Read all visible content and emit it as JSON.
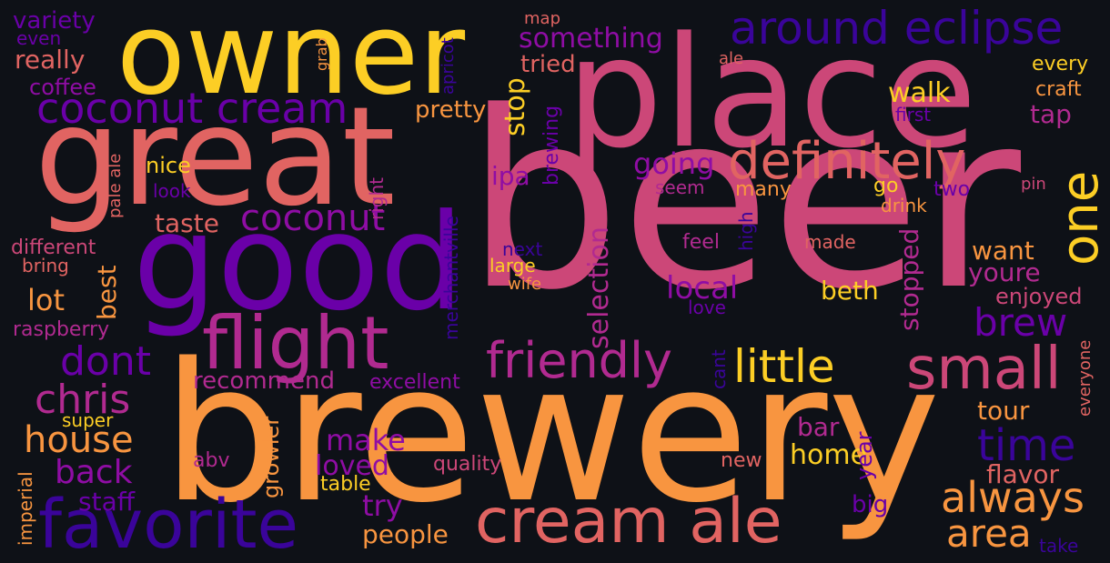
{
  "words": [
    {
      "id": "beer",
      "text": "beer",
      "color": "#cc4778"
    },
    {
      "id": "brewery",
      "text": "brewery",
      "color": "#f89540"
    },
    {
      "id": "place",
      "text": "place",
      "color": "#cc4778"
    },
    {
      "id": "great",
      "text": "great",
      "color": "#e16462"
    },
    {
      "id": "owner",
      "text": "owner",
      "color": "#fcce25"
    },
    {
      "id": "good",
      "text": "good",
      "color": "#6a00a8"
    },
    {
      "id": "favorite",
      "text": "favorite",
      "color": "#3a049a"
    },
    {
      "id": "cream-ale",
      "text": "cream ale",
      "color": "#e16462"
    },
    {
      "id": "flight",
      "text": "flight",
      "color": "#b12a90"
    },
    {
      "id": "small",
      "text": "small",
      "color": "#cc4778"
    },
    {
      "id": "definitely",
      "text": "definitely",
      "color": "#e16462"
    },
    {
      "id": "coconut-cream",
      "text": "coconut cream",
      "color": "#6a00a8"
    },
    {
      "id": "around-eclipse",
      "text": "around eclipse",
      "color": "#3a049a"
    },
    {
      "id": "friendly",
      "text": "friendly",
      "color": "#b12a90"
    },
    {
      "id": "little",
      "text": "little",
      "color": "#fcce25"
    },
    {
      "id": "always",
      "text": "always",
      "color": "#f89540"
    },
    {
      "id": "time",
      "text": "time",
      "color": "#3a049a"
    },
    {
      "id": "one",
      "text": "one",
      "color": "#fcce25"
    },
    {
      "id": "coconut",
      "text": "coconut",
      "color": "#8f0da4"
    },
    {
      "id": "house",
      "text": "house",
      "color": "#f89540"
    },
    {
      "id": "chris",
      "text": "chris",
      "color": "#b12a90"
    },
    {
      "id": "dont",
      "text": "dont",
      "color": "#6a00a8"
    },
    {
      "id": "brew",
      "text": "brew",
      "color": "#6a00a8"
    },
    {
      "id": "area",
      "text": "area",
      "color": "#f89540"
    },
    {
      "id": "back",
      "text": "back",
      "color": "#8f0da4"
    },
    {
      "id": "something",
      "text": "something",
      "color": "#8f0da4"
    },
    {
      "id": "going",
      "text": "going",
      "color": "#8f0da4"
    },
    {
      "id": "local",
      "text": "local",
      "color": "#8f0da4"
    },
    {
      "id": "really",
      "text": "really",
      "color": "#e16462"
    },
    {
      "id": "coffee",
      "text": "coffee",
      "color": "#8f0da4"
    },
    {
      "id": "variety",
      "text": "variety",
      "color": "#6a00a8"
    },
    {
      "id": "even",
      "text": "even",
      "color": "#6a00a8"
    },
    {
      "id": "nice",
      "text": "nice",
      "color": "#fcce25"
    },
    {
      "id": "taste",
      "text": "taste",
      "color": "#e16462"
    },
    {
      "id": "look",
      "text": "look",
      "color": "#6a00a8"
    },
    {
      "id": "different",
      "text": "different",
      "color": "#cc4778"
    },
    {
      "id": "bring",
      "text": "bring",
      "color": "#e16462"
    },
    {
      "id": "lot",
      "text": "lot",
      "color": "#f89540"
    },
    {
      "id": "raspberry",
      "text": "raspberry",
      "color": "#b12a90"
    },
    {
      "id": "recommend",
      "text": "recommend",
      "color": "#b12a90"
    },
    {
      "id": "excellent",
      "text": "excellent",
      "color": "#8f0da4"
    },
    {
      "id": "super",
      "text": "super",
      "color": "#fcce25"
    },
    {
      "id": "staff",
      "text": "staff",
      "color": "#6a00a8"
    },
    {
      "id": "try",
      "text": "try",
      "color": "#8f0da4"
    },
    {
      "id": "make",
      "text": "make",
      "color": "#8f0da4"
    },
    {
      "id": "loved",
      "text": "loved",
      "color": "#8f0da4"
    },
    {
      "id": "abv",
      "text": "abv",
      "color": "#b12a90"
    },
    {
      "id": "table",
      "text": "table",
      "color": "#fcce25"
    },
    {
      "id": "quality",
      "text": "quality",
      "color": "#cc4778"
    },
    {
      "id": "people",
      "text": "people",
      "color": "#f89540"
    },
    {
      "id": "new",
      "text": "new",
      "color": "#e16462"
    },
    {
      "id": "tried",
      "text": "tried",
      "color": "#e16462"
    },
    {
      "id": "pretty",
      "text": "pretty",
      "color": "#f89540"
    },
    {
      "id": "map",
      "text": "map",
      "color": "#e16462"
    },
    {
      "id": "ipa",
      "text": "ipa",
      "color": "#8f0da4"
    },
    {
      "id": "seem",
      "text": "seem",
      "color": "#b12a90"
    },
    {
      "id": "many",
      "text": "many",
      "color": "#f89540"
    },
    {
      "id": "feel",
      "text": "feel",
      "color": "#b12a90"
    },
    {
      "id": "made",
      "text": "made",
      "color": "#e16462"
    },
    {
      "id": "beth",
      "text": "beth",
      "color": "#fcce25"
    },
    {
      "id": "next",
      "text": "next",
      "color": "#3a049a"
    },
    {
      "id": "large",
      "text": "large",
      "color": "#fcce25"
    },
    {
      "id": "wife",
      "text": "wife",
      "color": "#f89540"
    },
    {
      "id": "love",
      "text": "love",
      "color": "#6a00a8"
    },
    {
      "id": "every",
      "text": "every",
      "color": "#fcce25"
    },
    {
      "id": "craft",
      "text": "craft",
      "color": "#f89540"
    },
    {
      "id": "ale",
      "text": "ale",
      "color": "#e16462"
    },
    {
      "id": "first",
      "text": "first",
      "color": "#6a00a8"
    },
    {
      "id": "walk",
      "text": "walk",
      "color": "#fcce25"
    },
    {
      "id": "tap",
      "text": "tap",
      "color": "#b12a90"
    },
    {
      "id": "go",
      "text": "go",
      "color": "#fcce25"
    },
    {
      "id": "two",
      "text": "two",
      "color": "#6a00a8"
    },
    {
      "id": "pin",
      "text": "pin",
      "color": "#cc4778"
    },
    {
      "id": "drink",
      "text": "drink",
      "color": "#f89540"
    },
    {
      "id": "want",
      "text": "want",
      "color": "#f89540"
    },
    {
      "id": "youre",
      "text": "youre",
      "color": "#b12a90"
    },
    {
      "id": "enjoyed",
      "text": "enjoyed",
      "color": "#cc4778"
    },
    {
      "id": "tour",
      "text": "tour",
      "color": "#f89540"
    },
    {
      "id": "bar",
      "text": "bar",
      "color": "#b12a90"
    },
    {
      "id": "home",
      "text": "home",
      "color": "#fcce25"
    },
    {
      "id": "flavor",
      "text": "flavor",
      "color": "#e16462"
    },
    {
      "id": "take",
      "text": "take",
      "color": "#3a049a"
    },
    {
      "id": "big",
      "text": "big",
      "color": "#6a00a8"
    },
    {
      "id": "stop",
      "text": "stop",
      "color": "#fcce25"
    },
    {
      "id": "brewing",
      "text": "brewing",
      "color": "#6a00a8"
    },
    {
      "id": "apricot",
      "text": "apricot",
      "color": "#3a049a"
    },
    {
      "id": "grab",
      "text": "grab",
      "color": "#f89540"
    },
    {
      "id": "right",
      "text": "right",
      "color": "#b12a90"
    },
    {
      "id": "pale-ale",
      "text": "pale ale",
      "color": "#e16462"
    },
    {
      "id": "best",
      "text": "best",
      "color": "#f89540"
    },
    {
      "id": "merchantville",
      "text": "merchantville",
      "color": "#3a049a"
    },
    {
      "id": "selection",
      "text": "selection",
      "color": "#b12a90"
    },
    {
      "id": "high",
      "text": "high",
      "color": "#3a049a"
    },
    {
      "id": "stopped",
      "text": "stopped",
      "color": "#b12a90"
    },
    {
      "id": "growler",
      "text": "growler",
      "color": "#f89540"
    },
    {
      "id": "imperial",
      "text": "imperial",
      "color": "#f89540"
    },
    {
      "id": "year",
      "text": "year",
      "color": "#6a00a8"
    },
    {
      "id": "cant",
      "text": "cant",
      "color": "#3a049a"
    },
    {
      "id": "everyone",
      "text": "everyone",
      "color": "#e16462"
    }
  ]
}
